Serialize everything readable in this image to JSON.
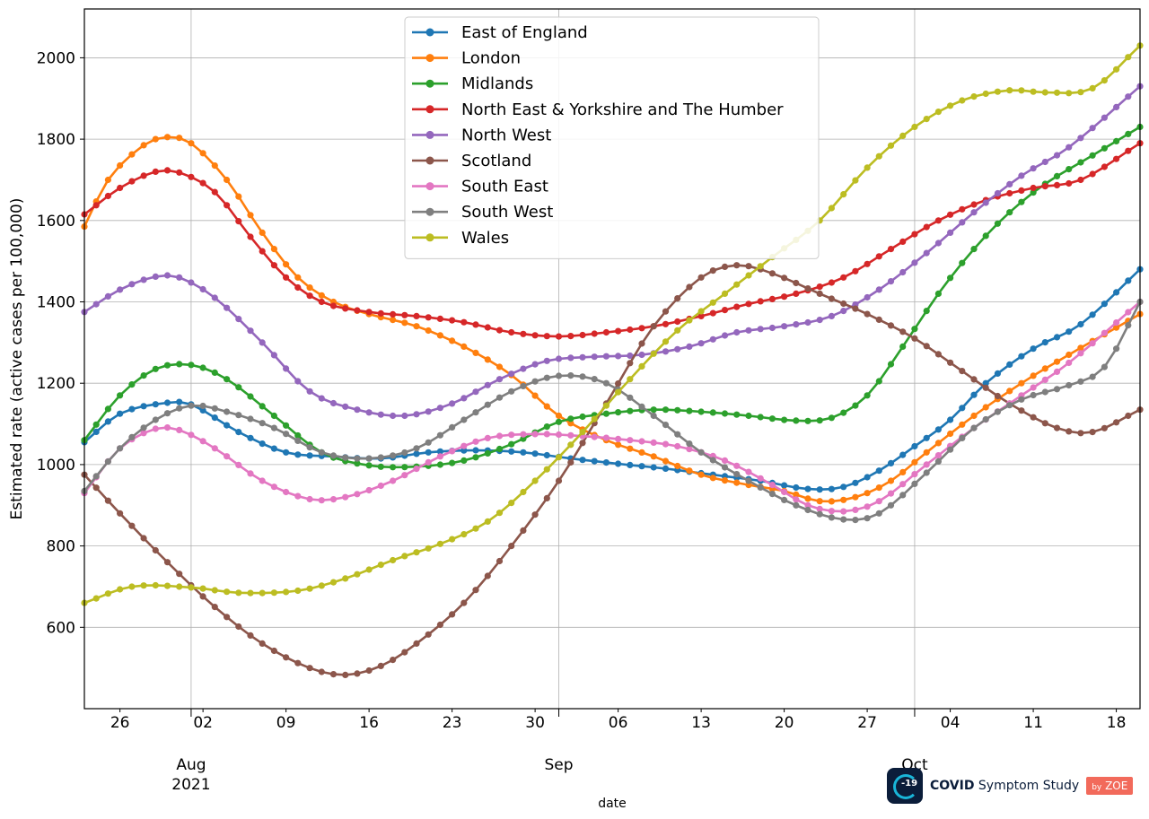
{
  "chart_data": {
    "type": "line",
    "ylabel": "Estimated rate (active cases per 100,000)",
    "xlabel": "date",
    "ylim": [
      400,
      2120
    ],
    "xlim": [
      "2021-07-23",
      "2021-10-20"
    ],
    "y_ticks": [
      600,
      800,
      1000,
      1200,
      1400,
      1600,
      1800,
      2000
    ],
    "x_minor_ticks": [
      {
        "date": "2021-07-26",
        "label": "26"
      },
      {
        "date": "2021-08-02",
        "label": "02"
      },
      {
        "date": "2021-08-09",
        "label": "09"
      },
      {
        "date": "2021-08-16",
        "label": "16"
      },
      {
        "date": "2021-08-23",
        "label": "23"
      },
      {
        "date": "2021-08-30",
        "label": "30"
      },
      {
        "date": "2021-09-06",
        "label": "06"
      },
      {
        "date": "2021-09-13",
        "label": "13"
      },
      {
        "date": "2021-09-20",
        "label": "20"
      },
      {
        "date": "2021-09-27",
        "label": "27"
      },
      {
        "date": "2021-10-04",
        "label": "04"
      },
      {
        "date": "2021-10-11",
        "label": "11"
      },
      {
        "date": "2021-10-18",
        "label": "18"
      }
    ],
    "x_major_ticks": [
      {
        "date": "2021-08-01",
        "label": "Aug",
        "sublabel": "2021"
      },
      {
        "date": "2021-09-01",
        "label": "Sep",
        "sublabel": ""
      },
      {
        "date": "2021-10-01",
        "label": "Oct",
        "sublabel": ""
      }
    ],
    "grid": true,
    "legend_position": "top-center",
    "series": [
      {
        "name": "East of England",
        "color": "#1f77b4",
        "points": [
          [
            "2021-07-23",
            1055
          ],
          [
            "2021-07-26",
            1125
          ],
          [
            "2021-07-30",
            1152
          ],
          [
            "2021-08-01",
            1148
          ],
          [
            "2021-08-05",
            1080
          ],
          [
            "2021-08-09",
            1030
          ],
          [
            "2021-08-13",
            1020
          ],
          [
            "2021-08-17",
            1015
          ],
          [
            "2021-08-21",
            1030
          ],
          [
            "2021-08-25",
            1035
          ],
          [
            "2021-08-29",
            1030
          ],
          [
            "2021-09-02",
            1015
          ],
          [
            "2021-09-06",
            1002
          ],
          [
            "2021-09-10",
            990
          ],
          [
            "2021-09-14",
            975
          ],
          [
            "2021-09-18",
            960
          ],
          [
            "2021-09-22",
            940
          ],
          [
            "2021-09-25",
            945
          ],
          [
            "2021-09-28",
            985
          ],
          [
            "2021-10-01",
            1045
          ],
          [
            "2021-10-04",
            1110
          ],
          [
            "2021-10-07",
            1200
          ],
          [
            "2021-10-11",
            1285
          ],
          [
            "2021-10-15",
            1345
          ],
          [
            "2021-10-20",
            1480
          ]
        ]
      },
      {
        "name": "London",
        "color": "#ff7f0e",
        "points": [
          [
            "2021-07-23",
            1585
          ],
          [
            "2021-07-25",
            1700
          ],
          [
            "2021-07-28",
            1785
          ],
          [
            "2021-07-30",
            1805
          ],
          [
            "2021-08-01",
            1790
          ],
          [
            "2021-08-04",
            1700
          ],
          [
            "2021-08-07",
            1570
          ],
          [
            "2021-08-10",
            1460
          ],
          [
            "2021-08-13",
            1400
          ],
          [
            "2021-08-16",
            1370
          ],
          [
            "2021-08-20",
            1340
          ],
          [
            "2021-08-24",
            1290
          ],
          [
            "2021-08-28",
            1220
          ],
          [
            "2021-09-01",
            1120
          ],
          [
            "2021-09-05",
            1060
          ],
          [
            "2021-09-09",
            1020
          ],
          [
            "2021-09-13",
            975
          ],
          [
            "2021-09-17",
            950
          ],
          [
            "2021-09-20",
            935
          ],
          [
            "2021-09-23",
            910
          ],
          [
            "2021-09-26",
            920
          ],
          [
            "2021-09-29",
            960
          ],
          [
            "2021-10-02",
            1030
          ],
          [
            "2021-10-06",
            1120
          ],
          [
            "2021-10-10",
            1200
          ],
          [
            "2021-10-14",
            1270
          ],
          [
            "2021-10-20",
            1370
          ]
        ]
      },
      {
        "name": "Midlands",
        "color": "#2ca02c",
        "points": [
          [
            "2021-07-23",
            1060
          ],
          [
            "2021-07-26",
            1170
          ],
          [
            "2021-07-29",
            1235
          ],
          [
            "2021-08-01",
            1245
          ],
          [
            "2021-08-04",
            1210
          ],
          [
            "2021-08-08",
            1120
          ],
          [
            "2021-08-12",
            1030
          ],
          [
            "2021-08-16",
            998
          ],
          [
            "2021-08-20",
            995
          ],
          [
            "2021-08-24",
            1010
          ],
          [
            "2021-08-28",
            1050
          ],
          [
            "2021-09-01",
            1105
          ],
          [
            "2021-09-05",
            1125
          ],
          [
            "2021-09-09",
            1135
          ],
          [
            "2021-09-13",
            1130
          ],
          [
            "2021-09-17",
            1120
          ],
          [
            "2021-09-21",
            1108
          ],
          [
            "2021-09-24",
            1115
          ],
          [
            "2021-09-27",
            1170
          ],
          [
            "2021-09-30",
            1290
          ],
          [
            "2021-10-03",
            1420
          ],
          [
            "2021-10-06",
            1530
          ],
          [
            "2021-10-09",
            1620
          ],
          [
            "2021-10-12",
            1690
          ],
          [
            "2021-10-16",
            1760
          ],
          [
            "2021-10-20",
            1830
          ]
        ]
      },
      {
        "name": "North East & Yorkshire and The Humber",
        "color": "#d62728",
        "points": [
          [
            "2021-07-23",
            1615
          ],
          [
            "2021-07-26",
            1680
          ],
          [
            "2021-07-29",
            1720
          ],
          [
            "2021-07-31",
            1718
          ],
          [
            "2021-08-03",
            1670
          ],
          [
            "2021-08-06",
            1560
          ],
          [
            "2021-08-09",
            1460
          ],
          [
            "2021-08-12",
            1400
          ],
          [
            "2021-08-16",
            1375
          ],
          [
            "2021-08-20",
            1365
          ],
          [
            "2021-08-24",
            1350
          ],
          [
            "2021-08-28",
            1325
          ],
          [
            "2021-09-01",
            1315
          ],
          [
            "2021-09-05",
            1325
          ],
          [
            "2021-09-09",
            1340
          ],
          [
            "2021-09-13",
            1365
          ],
          [
            "2021-09-17",
            1395
          ],
          [
            "2021-09-21",
            1420
          ],
          [
            "2021-09-25",
            1460
          ],
          [
            "2021-09-29",
            1530
          ],
          [
            "2021-10-03",
            1600
          ],
          [
            "2021-10-07",
            1650
          ],
          [
            "2021-10-11",
            1680
          ],
          [
            "2021-10-15",
            1700
          ],
          [
            "2021-10-20",
            1790
          ]
        ]
      },
      {
        "name": "North West",
        "color": "#9467bd",
        "points": [
          [
            "2021-07-23",
            1375
          ],
          [
            "2021-07-26",
            1430
          ],
          [
            "2021-07-29",
            1462
          ],
          [
            "2021-07-31",
            1460
          ],
          [
            "2021-08-03",
            1410
          ],
          [
            "2021-08-07",
            1300
          ],
          [
            "2021-08-11",
            1180
          ],
          [
            "2021-08-15",
            1135
          ],
          [
            "2021-08-19",
            1120
          ],
          [
            "2021-08-23",
            1150
          ],
          [
            "2021-08-27",
            1210
          ],
          [
            "2021-08-31",
            1255
          ],
          [
            "2021-09-04",
            1265
          ],
          [
            "2021-09-08",
            1270
          ],
          [
            "2021-09-12",
            1290
          ],
          [
            "2021-09-16",
            1325
          ],
          [
            "2021-09-20",
            1340
          ],
          [
            "2021-09-24",
            1365
          ],
          [
            "2021-09-28",
            1430
          ],
          [
            "2021-10-02",
            1520
          ],
          [
            "2021-10-06",
            1620
          ],
          [
            "2021-10-10",
            1710
          ],
          [
            "2021-10-14",
            1780
          ],
          [
            "2021-10-20",
            1930
          ]
        ]
      },
      {
        "name": "Scotland",
        "color": "#8c564b",
        "points": [
          [
            "2021-07-23",
            975
          ],
          [
            "2021-07-26",
            880
          ],
          [
            "2021-07-30",
            760
          ],
          [
            "2021-08-03",
            650
          ],
          [
            "2021-08-07",
            560
          ],
          [
            "2021-08-11",
            500
          ],
          [
            "2021-08-14",
            483
          ],
          [
            "2021-08-17",
            505
          ],
          [
            "2021-08-20",
            560
          ],
          [
            "2021-08-24",
            660
          ],
          [
            "2021-08-28",
            800
          ],
          [
            "2021-09-01",
            960
          ],
          [
            "2021-09-05",
            1150
          ],
          [
            "2021-09-09",
            1340
          ],
          [
            "2021-09-13",
            1460
          ],
          [
            "2021-09-16",
            1490
          ],
          [
            "2021-09-19",
            1470
          ],
          [
            "2021-09-23",
            1420
          ],
          [
            "2021-09-27",
            1370
          ],
          [
            "2021-10-01",
            1310
          ],
          [
            "2021-10-05",
            1230
          ],
          [
            "2021-10-09",
            1150
          ],
          [
            "2021-10-13",
            1090
          ],
          [
            "2021-10-16",
            1080
          ],
          [
            "2021-10-20",
            1135
          ]
        ]
      },
      {
        "name": "South East",
        "color": "#e377c2",
        "points": [
          [
            "2021-07-23",
            930
          ],
          [
            "2021-07-26",
            1040
          ],
          [
            "2021-07-29",
            1088
          ],
          [
            "2021-07-31",
            1085
          ],
          [
            "2021-08-03",
            1040
          ],
          [
            "2021-08-07",
            960
          ],
          [
            "2021-08-11",
            915
          ],
          [
            "2021-08-14",
            920
          ],
          [
            "2021-08-18",
            960
          ],
          [
            "2021-08-22",
            1020
          ],
          [
            "2021-08-26",
            1065
          ],
          [
            "2021-08-30",
            1075
          ],
          [
            "2021-09-03",
            1070
          ],
          [
            "2021-09-07",
            1060
          ],
          [
            "2021-09-11",
            1045
          ],
          [
            "2021-09-15",
            1010
          ],
          [
            "2021-09-19",
            950
          ],
          [
            "2021-09-22",
            900
          ],
          [
            "2021-09-25",
            885
          ],
          [
            "2021-09-28",
            910
          ],
          [
            "2021-10-02",
            1000
          ],
          [
            "2021-10-06",
            1090
          ],
          [
            "2021-10-10",
            1170
          ],
          [
            "2021-10-14",
            1250
          ],
          [
            "2021-10-20",
            1400
          ]
        ]
      },
      {
        "name": "South West",
        "color": "#7f7f7f",
        "points": [
          [
            "2021-07-23",
            935
          ],
          [
            "2021-07-26",
            1040
          ],
          [
            "2021-07-29",
            1110
          ],
          [
            "2021-08-01",
            1145
          ],
          [
            "2021-08-04",
            1130
          ],
          [
            "2021-08-08",
            1090
          ],
          [
            "2021-08-12",
            1030
          ],
          [
            "2021-08-16",
            1015
          ],
          [
            "2021-08-20",
            1040
          ],
          [
            "2021-08-24",
            1110
          ],
          [
            "2021-08-28",
            1180
          ],
          [
            "2021-09-01",
            1218
          ],
          [
            "2021-09-05",
            1200
          ],
          [
            "2021-09-09",
            1120
          ],
          [
            "2021-09-13",
            1030
          ],
          [
            "2021-09-17",
            960
          ],
          [
            "2021-09-21",
            900
          ],
          [
            "2021-09-25",
            865
          ],
          [
            "2021-09-28",
            880
          ],
          [
            "2021-10-02",
            980
          ],
          [
            "2021-10-06",
            1090
          ],
          [
            "2021-10-10",
            1160
          ],
          [
            "2021-10-14",
            1195
          ],
          [
            "2021-10-17",
            1240
          ],
          [
            "2021-10-20",
            1400
          ]
        ]
      },
      {
        "name": "Wales",
        "color": "#bcbd22",
        "points": [
          [
            "2021-07-23",
            660
          ],
          [
            "2021-07-27",
            700
          ],
          [
            "2021-08-01",
            698
          ],
          [
            "2021-08-05",
            685
          ],
          [
            "2021-08-10",
            690
          ],
          [
            "2021-08-14",
            720
          ],
          [
            "2021-08-18",
            765
          ],
          [
            "2021-08-22",
            805
          ],
          [
            "2021-08-26",
            860
          ],
          [
            "2021-08-30",
            960
          ],
          [
            "2021-09-03",
            1080
          ],
          [
            "2021-09-07",
            1210
          ],
          [
            "2021-09-11",
            1330
          ],
          [
            "2021-09-15",
            1420
          ],
          [
            "2021-09-19",
            1510
          ],
          [
            "2021-09-23",
            1600
          ],
          [
            "2021-09-27",
            1730
          ],
          [
            "2021-10-01",
            1830
          ],
          [
            "2021-10-05",
            1895
          ],
          [
            "2021-10-09",
            1920
          ],
          [
            "2021-10-12",
            1915
          ],
          [
            "2021-10-16",
            1925
          ],
          [
            "2021-10-20",
            2030
          ]
        ]
      }
    ]
  },
  "branding": {
    "logo_number": "-19",
    "name_bold": "COVID",
    "name_rest": " Symptom Study",
    "badge_prefix": "by",
    "badge": "ZOE"
  }
}
